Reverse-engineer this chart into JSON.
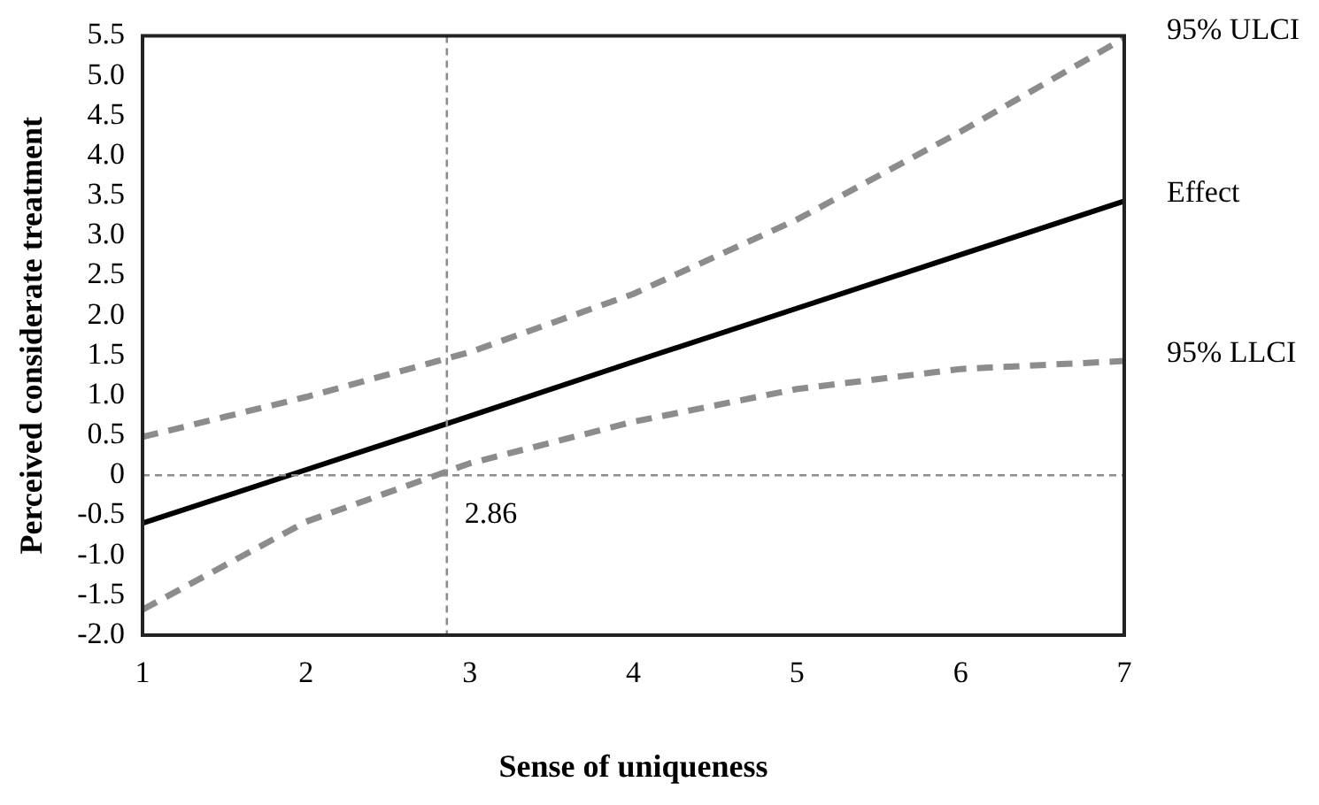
{
  "chart_data": {
    "type": "line",
    "xlabel": "Sense of uniqueness",
    "ylabel": "Perceived considerate treatment",
    "x": [
      1,
      2,
      3,
      4,
      5,
      6,
      7
    ],
    "series": [
      {
        "name": "95% ULCI",
        "color": "#8c8c8c",
        "line_style": "dashed",
        "values": [
          0.48,
          0.98,
          1.54,
          2.27,
          3.2,
          4.3,
          5.47
        ]
      },
      {
        "name": "Effect",
        "color": "#000000",
        "line_style": "solid",
        "values": [
          -0.6,
          0.07,
          0.74,
          1.42,
          2.09,
          2.76,
          3.43
        ]
      },
      {
        "name": "95% LLCI",
        "color": "#8c8c8c",
        "line_style": "dashed",
        "values": [
          -1.68,
          -0.58,
          0.15,
          0.67,
          1.08,
          1.33,
          1.43
        ]
      }
    ],
    "xlim": [
      1,
      7
    ],
    "xticks": [
      1,
      2,
      3,
      4,
      5,
      6,
      7
    ],
    "ylim": [
      -2,
      5.5
    ],
    "yticks": [
      {
        "value": 5.5,
        "label": "5.5"
      },
      {
        "value": 5,
        "label": "5.0"
      },
      {
        "value": 4.5,
        "label": "4.5"
      },
      {
        "value": 4,
        "label": "4.0"
      },
      {
        "value": 3.5,
        "label": "3.5"
      },
      {
        "value": 3,
        "label": "3.0"
      },
      {
        "value": 2.5,
        "label": "2.5"
      },
      {
        "value": 2,
        "label": "2.0"
      },
      {
        "value": 1.5,
        "label": "1.5"
      },
      {
        "value": 1,
        "label": "1.0"
      },
      {
        "value": 0.5,
        "label": "0.5"
      },
      0,
      {
        "value": -0.5,
        "label": "-0.5"
      },
      {
        "value": -1,
        "label": "-1.0"
      },
      {
        "value": -1.5,
        "label": "-1.5"
      },
      {
        "value": -2,
        "label": "-2.0"
      }
    ],
    "ref_lines": [
      {
        "axis": "y",
        "value": 0,
        "color": "#8c8c8c",
        "line_style": "dashed"
      },
      {
        "axis": "x",
        "value": 2.86,
        "label": "2.86",
        "color": "#8c8c8c",
        "line_style": "dashed"
      }
    ],
    "grid": false,
    "legend": false,
    "marker": "none"
  }
}
